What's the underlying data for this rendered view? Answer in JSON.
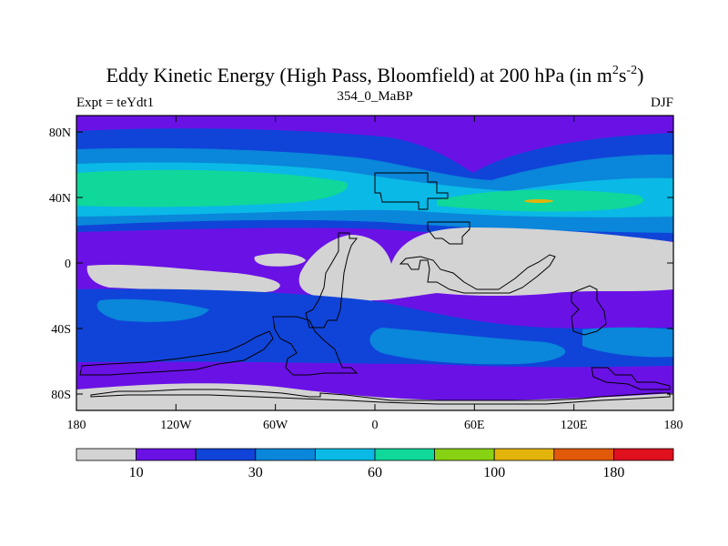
{
  "chart_data": {
    "type": "heatmap",
    "title": "Eddy Kinetic Energy (High Pass, Bloomfield) at 200 hPa (in m",
    "title_units": {
      "base": "m",
      "sup1": "2",
      "mid": "s",
      "sup2": "-2",
      "close": ")"
    },
    "left_label": "Expt = teYdt1",
    "center_label": "354_0_MaBP",
    "right_label": "DJF",
    "x_ticks": [
      {
        "value": -180,
        "label": "180"
      },
      {
        "value": -120,
        "label": "120W"
      },
      {
        "value": -60,
        "label": "60W"
      },
      {
        "value": 0,
        "label": "0"
      },
      {
        "value": 60,
        "label": "60E"
      },
      {
        "value": 120,
        "label": "120E"
      },
      {
        "value": 180,
        "label": "180"
      }
    ],
    "y_ticks": [
      {
        "value": 80,
        "label": "80N"
      },
      {
        "value": 40,
        "label": "40N"
      },
      {
        "value": 0,
        "label": "0"
      },
      {
        "value": -40,
        "label": "40S"
      },
      {
        "value": -80,
        "label": "80S"
      }
    ],
    "xlim": [
      -180,
      180
    ],
    "ylim": [
      -90,
      90
    ],
    "colorbar": {
      "colors": [
        "#d3d3d3",
        "#6a11e6",
        "#1044d8",
        "#0a86da",
        "#0ab9e6",
        "#10d79a",
        "#88d214",
        "#e3b40c",
        "#e05a0a",
        "#e0101e"
      ],
      "tick_labels": [
        {
          "boundary": 1,
          "label": "10"
        },
        {
          "boundary": 3,
          "label": "30"
        },
        {
          "boundary": 5,
          "label": "60"
        },
        {
          "boundary": 7,
          "label": "100"
        },
        {
          "boundary": 9,
          "label": "180"
        }
      ]
    }
  }
}
